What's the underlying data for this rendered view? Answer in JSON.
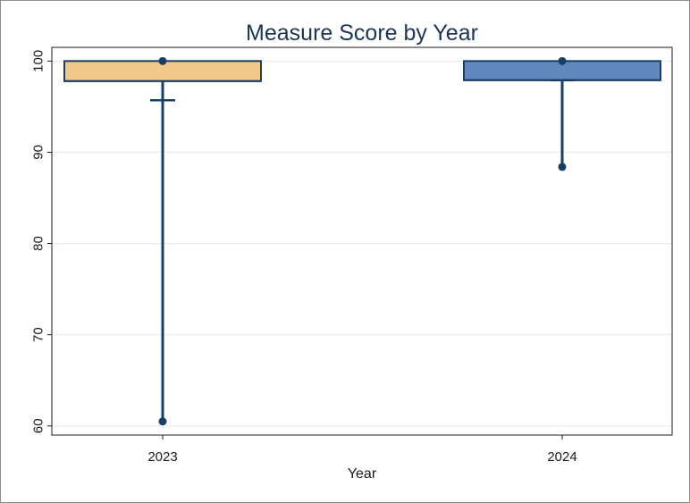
{
  "chart_data": {
    "type": "box",
    "title": "Measure Score by Year",
    "xlabel": "Year",
    "ylabel": "",
    "categories": [
      "2023",
      "2024"
    ],
    "ylim": [
      59,
      101.5
    ],
    "yticks": [
      60,
      70,
      80,
      90,
      100
    ],
    "grid": true,
    "legend": "none",
    "boxes": [
      {
        "category": "2023",
        "min": 60.5,
        "q1": 97.8,
        "median": 97.8,
        "q3": 100,
        "max": 100,
        "mean": 95.7,
        "color": "#f2c787"
      },
      {
        "category": "2024",
        "min": 88.4,
        "q1": 97.9,
        "median": 97.9,
        "q3": 100,
        "max": 100,
        "mean": 97.9,
        "color": "#6288c0"
      }
    ],
    "colors": {
      "outline": "#1a3f66",
      "whisker": "#1a3f66",
      "grid": "#e6ecef",
      "title": "#1a3556"
    }
  }
}
